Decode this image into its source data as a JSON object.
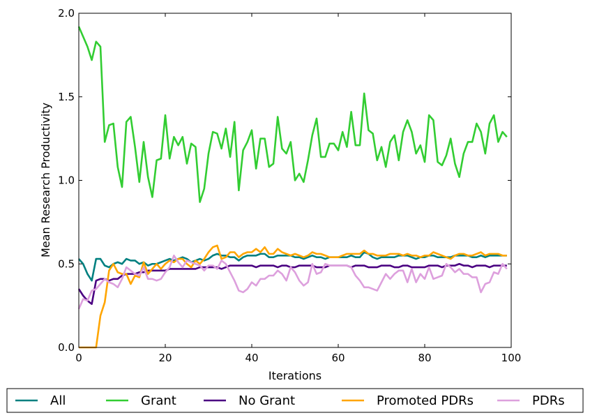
{
  "chart_data": {
    "type": "line",
    "title": "",
    "xlabel": "Iterations",
    "ylabel": "Mean Research Productivity",
    "xlim": [
      0,
      100
    ],
    "ylim": [
      0.0,
      2.0
    ],
    "x_ticks": [
      0,
      20,
      40,
      60,
      80,
      100
    ],
    "x_tick_labels": [
      "0",
      "20",
      "40",
      "60",
      "80",
      "100"
    ],
    "y_ticks": [
      0.0,
      0.5,
      1.0,
      1.5,
      2.0
    ],
    "y_tick_labels": [
      "0.0",
      "0.5",
      "1.0",
      "1.5",
      "2.0"
    ],
    "grid": false,
    "legend_position": "bottom (below plot)",
    "x": [
      0,
      1,
      2,
      3,
      4,
      5,
      6,
      7,
      8,
      9,
      10,
      11,
      12,
      13,
      14,
      15,
      16,
      17,
      18,
      19,
      20,
      21,
      22,
      23,
      24,
      25,
      26,
      27,
      28,
      29,
      30,
      31,
      32,
      33,
      34,
      35,
      36,
      37,
      38,
      39,
      40,
      41,
      42,
      43,
      44,
      45,
      46,
      47,
      48,
      49,
      50,
      51,
      52,
      53,
      54,
      55,
      56,
      57,
      58,
      59,
      60,
      61,
      62,
      63,
      64,
      65,
      66,
      67,
      68,
      69,
      70,
      71,
      72,
      73,
      74,
      75,
      76,
      77,
      78,
      79,
      80,
      81,
      82,
      83,
      84,
      85,
      86,
      87,
      88,
      89,
      90,
      91,
      92,
      93,
      94,
      95,
      96,
      97,
      98,
      99
    ],
    "series": [
      {
        "name": "All",
        "color": "#008080",
        "values": [
          0.53,
          0.5,
          0.44,
          0.4,
          0.53,
          0.53,
          0.49,
          0.48,
          0.5,
          0.51,
          0.5,
          0.53,
          0.52,
          0.52,
          0.5,
          0.51,
          0.49,
          0.5,
          0.5,
          0.51,
          0.52,
          0.53,
          0.52,
          0.53,
          0.54,
          0.53,
          0.51,
          0.52,
          0.53,
          0.52,
          0.53,
          0.55,
          0.56,
          0.55,
          0.55,
          0.54,
          0.54,
          0.52,
          0.54,
          0.55,
          0.55,
          0.55,
          0.56,
          0.56,
          0.54,
          0.54,
          0.55,
          0.55,
          0.55,
          0.55,
          0.54,
          0.54,
          0.53,
          0.54,
          0.55,
          0.54,
          0.54,
          0.53,
          0.54,
          0.54,
          0.54,
          0.54,
          0.54,
          0.55,
          0.54,
          0.54,
          0.57,
          0.56,
          0.54,
          0.53,
          0.54,
          0.54,
          0.54,
          0.54,
          0.55,
          0.55,
          0.55,
          0.54,
          0.53,
          0.54,
          0.54,
          0.55,
          0.55,
          0.54,
          0.54,
          0.54,
          0.54,
          0.55,
          0.55,
          0.55,
          0.55,
          0.54,
          0.54,
          0.55,
          0.54,
          0.55,
          0.55,
          0.55,
          0.55,
          0.55
        ]
      },
      {
        "name": "Grant",
        "color": "#32CD32",
        "values": [
          1.92,
          1.86,
          1.8,
          1.72,
          1.83,
          1.8,
          1.23,
          1.33,
          1.34,
          1.08,
          0.96,
          1.35,
          1.38,
          1.2,
          0.99,
          1.23,
          1.02,
          0.9,
          1.12,
          1.13,
          1.39,
          1.13,
          1.26,
          1.21,
          1.26,
          1.1,
          1.22,
          1.2,
          0.87,
          0.95,
          1.16,
          1.29,
          1.28,
          1.19,
          1.31,
          1.14,
          1.35,
          0.94,
          1.18,
          1.23,
          1.3,
          1.07,
          1.25,
          1.25,
          1.08,
          1.1,
          1.38,
          1.19,
          1.16,
          1.23,
          1.0,
          1.04,
          0.99,
          1.12,
          1.27,
          1.37,
          1.14,
          1.14,
          1.22,
          1.22,
          1.18,
          1.29,
          1.2,
          1.41,
          1.21,
          1.21,
          1.52,
          1.3,
          1.28,
          1.12,
          1.2,
          1.08,
          1.23,
          1.27,
          1.12,
          1.29,
          1.36,
          1.29,
          1.16,
          1.21,
          1.11,
          1.39,
          1.36,
          1.11,
          1.09,
          1.15,
          1.25,
          1.1,
          1.02,
          1.16,
          1.23,
          1.23,
          1.34,
          1.29,
          1.16,
          1.34,
          1.39,
          1.23,
          1.29,
          1.26
        ]
      },
      {
        "name": "No Grant",
        "color": "#4B0082",
        "values": [
          0.35,
          0.31,
          0.28,
          0.26,
          0.4,
          0.41,
          0.41,
          0.4,
          0.41,
          0.41,
          0.43,
          0.44,
          0.44,
          0.44,
          0.45,
          0.45,
          0.46,
          0.46,
          0.46,
          0.46,
          0.46,
          0.47,
          0.47,
          0.47,
          0.47,
          0.47,
          0.47,
          0.47,
          0.48,
          0.48,
          0.48,
          0.48,
          0.48,
          0.47,
          0.48,
          0.49,
          0.49,
          0.49,
          0.49,
          0.49,
          0.49,
          0.48,
          0.49,
          0.49,
          0.49,
          0.49,
          0.48,
          0.49,
          0.49,
          0.48,
          0.48,
          0.49,
          0.49,
          0.49,
          0.49,
          0.48,
          0.48,
          0.48,
          0.49,
          0.49,
          0.49,
          0.49,
          0.49,
          0.48,
          0.49,
          0.49,
          0.49,
          0.48,
          0.48,
          0.48,
          0.49,
          0.49,
          0.49,
          0.48,
          0.48,
          0.49,
          0.49,
          0.48,
          0.48,
          0.48,
          0.48,
          0.49,
          0.49,
          0.49,
          0.48,
          0.49,
          0.49,
          0.49,
          0.5,
          0.49,
          0.49,
          0.48,
          0.49,
          0.49,
          0.49,
          0.48,
          0.49,
          0.49,
          0.49,
          0.49
        ]
      },
      {
        "name": "Promoted PDRs",
        "color": "#FFA500",
        "values": [
          0.0,
          0.0,
          0.0,
          0.0,
          0.0,
          0.19,
          0.27,
          0.46,
          0.5,
          0.45,
          0.44,
          0.44,
          0.38,
          0.43,
          0.42,
          0.51,
          0.44,
          0.47,
          0.5,
          0.47,
          0.5,
          0.52,
          0.51,
          0.53,
          0.53,
          0.5,
          0.48,
          0.52,
          0.5,
          0.53,
          0.57,
          0.6,
          0.61,
          0.53,
          0.54,
          0.57,
          0.57,
          0.54,
          0.56,
          0.57,
          0.57,
          0.59,
          0.57,
          0.6,
          0.56,
          0.56,
          0.59,
          0.57,
          0.56,
          0.55,
          0.56,
          0.55,
          0.54,
          0.55,
          0.57,
          0.56,
          0.56,
          0.55,
          0.54,
          0.54,
          0.54,
          0.55,
          0.56,
          0.56,
          0.56,
          0.56,
          0.58,
          0.56,
          0.56,
          0.55,
          0.55,
          0.55,
          0.56,
          0.56,
          0.56,
          0.55,
          0.56,
          0.55,
          0.55,
          0.54,
          0.55,
          0.55,
          0.57,
          0.56,
          0.55,
          0.54,
          0.53,
          0.55,
          0.56,
          0.56,
          0.55,
          0.55,
          0.56,
          0.57,
          0.55,
          0.56,
          0.56,
          0.56,
          0.55,
          0.55
        ]
      },
      {
        "name": "PDRs",
        "color": "#DDA0DD",
        "values": [
          0.23,
          0.29,
          0.28,
          0.34,
          0.35,
          0.38,
          0.41,
          0.39,
          0.38,
          0.36,
          0.41,
          0.48,
          0.46,
          0.44,
          0.43,
          0.48,
          0.41,
          0.41,
          0.4,
          0.41,
          0.45,
          0.48,
          0.55,
          0.51,
          0.48,
          0.52,
          0.51,
          0.5,
          0.49,
          0.46,
          0.49,
          0.49,
          0.47,
          0.52,
          0.5,
          0.45,
          0.4,
          0.34,
          0.33,
          0.35,
          0.39,
          0.37,
          0.41,
          0.41,
          0.43,
          0.43,
          0.46,
          0.44,
          0.4,
          0.48,
          0.45,
          0.4,
          0.37,
          0.39,
          0.5,
          0.44,
          0.45,
          0.5,
          0.49,
          0.49,
          0.49,
          0.49,
          0.49,
          0.48,
          0.43,
          0.4,
          0.36,
          0.36,
          0.35,
          0.34,
          0.39,
          0.44,
          0.41,
          0.44,
          0.46,
          0.46,
          0.39,
          0.47,
          0.39,
          0.44,
          0.41,
          0.48,
          0.41,
          0.42,
          0.43,
          0.5,
          0.48,
          0.45,
          0.47,
          0.44,
          0.44,
          0.42,
          0.42,
          0.33,
          0.38,
          0.39,
          0.45,
          0.44,
          0.5,
          0.47
        ]
      }
    ]
  }
}
